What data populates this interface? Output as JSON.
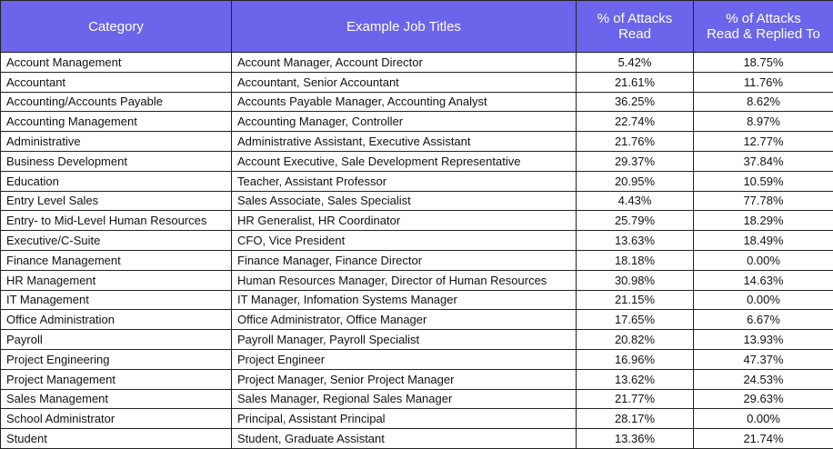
{
  "table": {
    "header": [
      [
        "Category"
      ],
      [
        "Example Job Titles"
      ],
      [
        "% of Attacks",
        "Read"
      ],
      [
        "% of Attacks",
        "Read & Replied To"
      ]
    ],
    "rows": [
      [
        "Account Management",
        "Account Manager, Account Director",
        "5.42%",
        "18.75%"
      ],
      [
        "Accountant",
        "Accountant, Senior Accountant",
        "21.61%",
        "11.76%"
      ],
      [
        "Accounting/Accounts Payable",
        "Accounts Payable Manager, Accounting Analyst",
        "36.25%",
        "8.62%"
      ],
      [
        "Accounting Management",
        "Accounting Manager, Controller",
        "22.74%",
        "8.97%"
      ],
      [
        "Administrative",
        "Administrative Assistant, Executive Assistant",
        "21.76%",
        "12.77%"
      ],
      [
        "Business Development",
        "Account Executive, Sale Development Representative",
        "29.37%",
        "37.84%"
      ],
      [
        "Education",
        "Teacher, Assistant Professor",
        "20.95%",
        "10.59%"
      ],
      [
        "Entry Level Sales",
        "Sales Associate, Sales Specialist",
        "4.43%",
        "77.78%"
      ],
      [
        "Entry- to Mid-Level Human Resources",
        "HR Generalist, HR Coordinator",
        "25.79%",
        "18.29%"
      ],
      [
        "Executive/C-Suite",
        "CFO, Vice President",
        "13.63%",
        "18.49%"
      ],
      [
        "Finance Management",
        "Finance Manager, Finance Director",
        "18.18%",
        "0.00%"
      ],
      [
        "HR Management",
        "Human Resources Manager, Director of Human Resources",
        "30.98%",
        "14.63%"
      ],
      [
        "IT Management",
        "IT Manager, Infomation Systems Manager",
        "21.15%",
        "0.00%"
      ],
      [
        "Office Administration",
        "Office Administrator, Office Manager",
        "17.65%",
        "6.67%"
      ],
      [
        "Payroll",
        "Payroll Manager, Payroll Specialist",
        "20.82%",
        "13.93%"
      ],
      [
        "Project Engineering",
        "Project Engineer",
        "16.96%",
        "47.37%"
      ],
      [
        "Project Management",
        "Project Manager, Senior Project Manager",
        "13.62%",
        "24.53%"
      ],
      [
        "Sales Management",
        "Sales Manager, Regional Sales Manager",
        "21.77%",
        "29.63%"
      ],
      [
        "School Administrator",
        "Principal, Assistant Principal",
        "28.17%",
        "0.00%"
      ],
      [
        "Student",
        "Student, Graduate Assistant",
        "13.36%",
        "21.74%"
      ]
    ]
  }
}
